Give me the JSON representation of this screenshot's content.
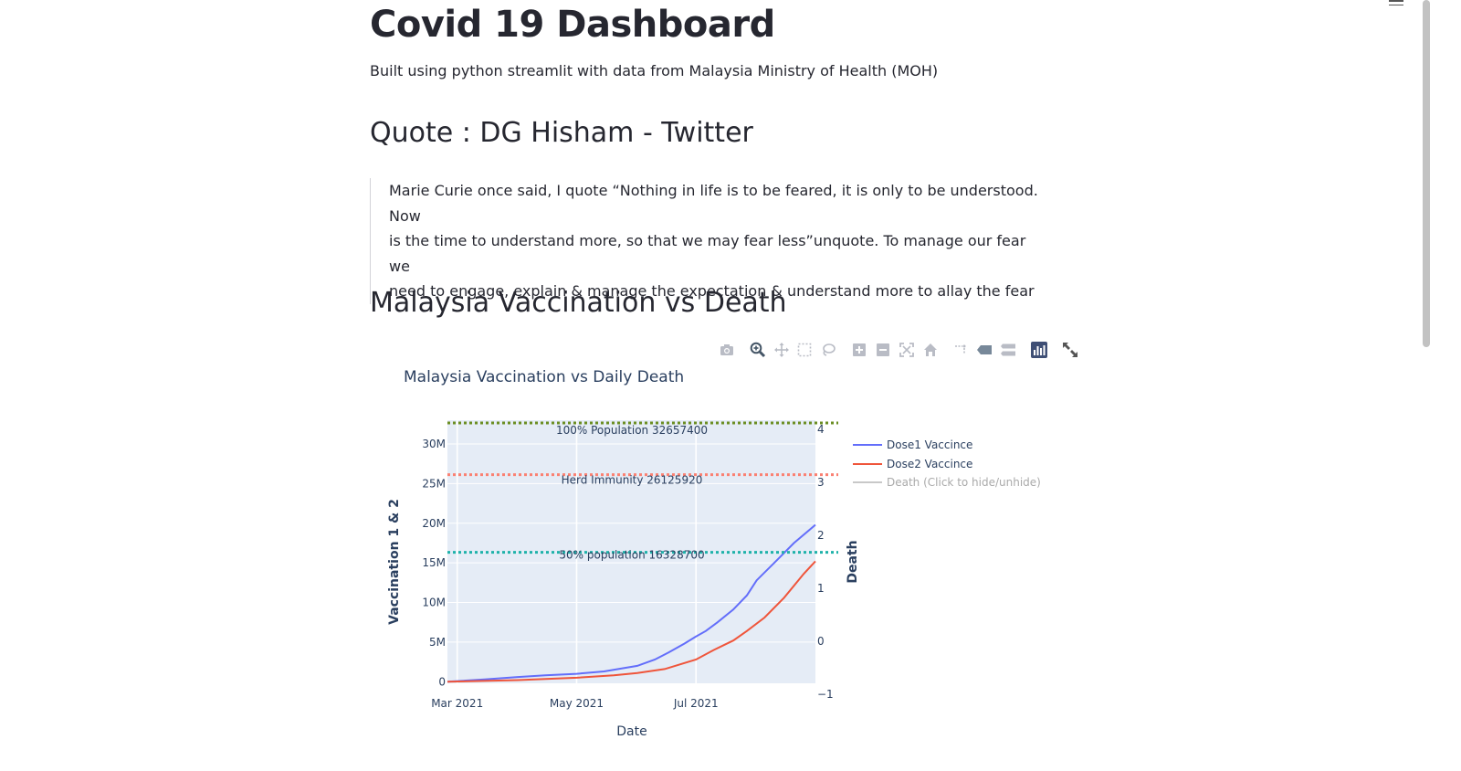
{
  "page": {
    "title": "Covid 19 Dashboard",
    "subtitle": "Built using python streamlit with data from Malaysia Ministry of Health (MOH)"
  },
  "quote_section": {
    "heading": "Quote : DG Hisham - Twitter",
    "lines": [
      "Marie Curie once said, I quote “Nothing in life is to be feared, it is only to be understood. Now",
      "is the time to understand more, so that we may fear less”unquote. To manage our fear we",
      "need to engage, explain & manage the expectation & understand more to allay the fear"
    ]
  },
  "chart_section": {
    "heading": "Malaysia Vaccination vs Death"
  },
  "modebar": {
    "buttons": [
      "camera-icon",
      "zoom-icon",
      "pan-icon",
      "box-select-icon",
      "lasso-select-icon",
      "zoom-in-icon",
      "zoom-out-icon",
      "autoscale-icon",
      "reset-axes-icon",
      "spike-lines-icon",
      "show-closest-icon",
      "compare-data-icon",
      "plotly-logo-icon"
    ],
    "fullscreen": "fullscreen-icon"
  },
  "colors": {
    "dose1": "#636efa",
    "dose2": "#ef553b",
    "death": "#c8c8c8",
    "line_100": "#6b8e23",
    "line_herd": "#fa8072",
    "line_50": "#20b2aa",
    "plot_bg": "#e5ecf6"
  },
  "chart_data": {
    "type": "line",
    "title": "Malaysia Vaccination vs Daily Death",
    "xlabel": "Date",
    "ylabel": "Vaccination 1 & 2",
    "y2label": "Death",
    "x_ticks": [
      "Mar 2021",
      "May 2021",
      "Jul 2021"
    ],
    "y_ticks": [
      "0",
      "5M",
      "10M",
      "15M",
      "20M",
      "25M",
      "30M"
    ],
    "y2_ticks": [
      "−1",
      "0",
      "1",
      "2",
      "3",
      "4"
    ],
    "ylim": [
      -200000,
      33000000
    ],
    "y2lim": [
      -1,
      4
    ],
    "xlim": [
      "2021-02-24",
      "2021-08-31"
    ],
    "series": [
      {
        "name": "Dose1 Vaccince",
        "x": [
          "2021-02-24",
          "2021-03-15",
          "2021-04-01",
          "2021-04-15",
          "2021-05-01",
          "2021-05-15",
          "2021-06-01",
          "2021-06-10",
          "2021-06-17",
          "2021-06-25",
          "2021-07-01",
          "2021-07-06",
          "2021-07-12",
          "2021-07-20",
          "2021-07-27",
          "2021-08-01",
          "2021-08-10",
          "2021-08-20",
          "2021-08-31"
        ],
        "values": [
          0,
          300000,
          600000,
          800000,
          1000000,
          1300000,
          2000000,
          2800000,
          3700000,
          4800000,
          5700000,
          6400000,
          7500000,
          9100000,
          10900000,
          12800000,
          15000000,
          17500000,
          19800000
        ]
      },
      {
        "name": "Dose2 Vaccince",
        "x": [
          "2021-02-24",
          "2021-04-01",
          "2021-05-01",
          "2021-05-20",
          "2021-06-01",
          "2021-06-15",
          "2021-07-01",
          "2021-07-10",
          "2021-07-20",
          "2021-07-27",
          "2021-08-05",
          "2021-08-15",
          "2021-08-25",
          "2021-08-31"
        ],
        "values": [
          0,
          200000,
          500000,
          800000,
          1100000,
          1600000,
          2800000,
          4000000,
          5200000,
          6400000,
          8100000,
          10600000,
          13600000,
          15200000
        ]
      },
      {
        "name": "Death (Click to hide/unhide)",
        "hidden": true,
        "x": [],
        "values": []
      }
    ],
    "reference_lines": [
      {
        "label": "100% Population 32657400",
        "value": 32657400
      },
      {
        "label": "Herd Immunity 26125920",
        "value": 26125920
      },
      {
        "label": "50% population 16328700",
        "value": 16328700
      }
    ],
    "legend_position": "right"
  }
}
